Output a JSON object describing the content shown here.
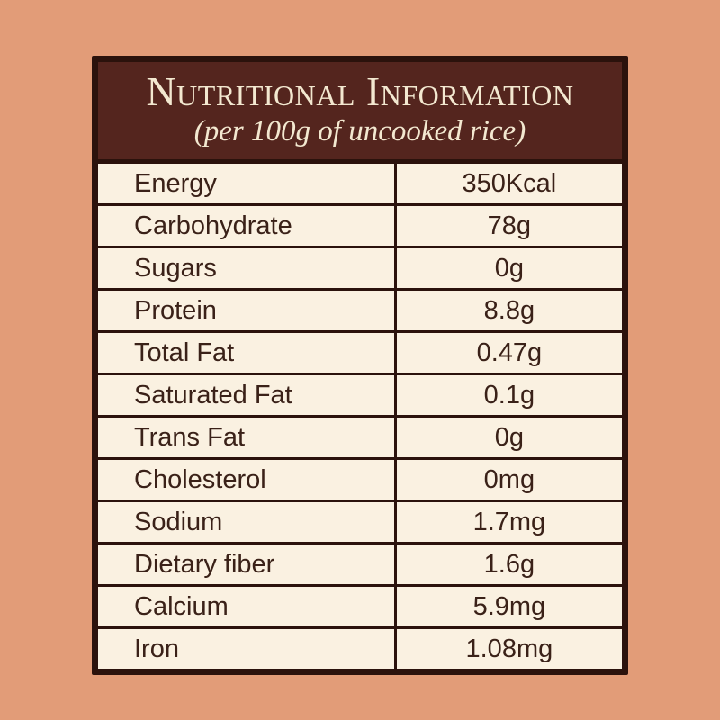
{
  "page": {
    "background_color": "#e29c78"
  },
  "card": {
    "title": "Nutritional Information",
    "subtitle": "(per 100g of uncooked rice)",
    "colors": {
      "header_background": "#54251e",
      "header_text": "#f3e8d0",
      "border": "#2b120c",
      "row_background": "#faf1e1",
      "row_text": "#3a2118"
    }
  },
  "table": {
    "rows": [
      {
        "label": "Energy",
        "value": "350Kcal"
      },
      {
        "label": "Carbohydrate",
        "value": "78g"
      },
      {
        "label": "Sugars",
        "value": "0g"
      },
      {
        "label": "Protein",
        "value": "8.8g"
      },
      {
        "label": "Total Fat",
        "value": "0.47g"
      },
      {
        "label": "Saturated Fat",
        "value": "0.1g"
      },
      {
        "label": "Trans Fat",
        "value": "0g"
      },
      {
        "label": "Cholesterol",
        "value": "0mg"
      },
      {
        "label": "Sodium",
        "value": "1.7mg"
      },
      {
        "label": "Dietary fiber",
        "value": "1.6g"
      },
      {
        "label": "Calcium",
        "value": "5.9mg"
      },
      {
        "label": "Iron",
        "value": "1.08mg"
      }
    ]
  }
}
